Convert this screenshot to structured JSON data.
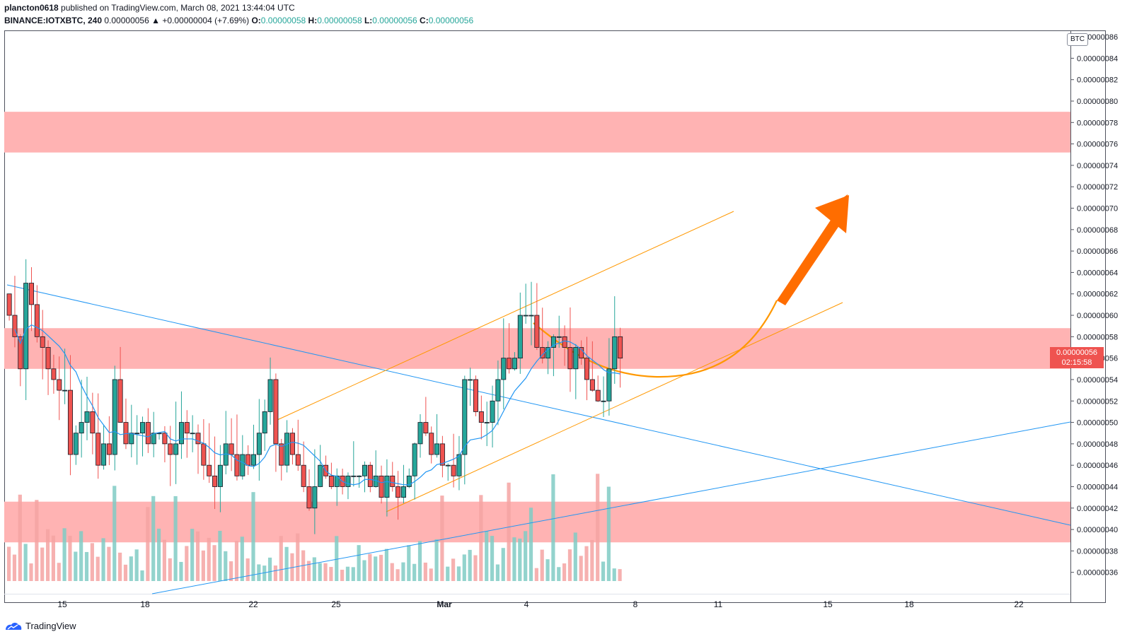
{
  "header": {
    "author": "plancton0618",
    "published_text": "published on TradingView.com, March 08, 2021 13:44:04 UTC",
    "symbol": "BINANCE:IOTXBTC, 240",
    "last": "0.00000056",
    "change": "▲ +0.00000004 (+7.69%)",
    "o_label": "O:",
    "o": "0.00000058",
    "h_label": "H:",
    "h": "0.00000058",
    "l_label": "L:",
    "l": "0.00000056",
    "c_label": "C:",
    "c": "0.00000056"
  },
  "currency_badge": "BTC",
  "price_tag": {
    "price": "0.00000056",
    "countdown": "02:15:58"
  },
  "footer": {
    "brand": "TradingView"
  },
  "colors": {
    "up": "#26a69a",
    "down": "#ef5350",
    "zone": "#ffb3b3",
    "sma": "#2196f3",
    "trend": "#2196f3",
    "channel": "#ff9800",
    "arrow": "#ff6d00"
  },
  "chart_data": {
    "type": "candlestick",
    "timeframe": "240",
    "y_unit": "BTC",
    "ylim": [
      3.4e-07,
      8.66e-07
    ],
    "y_ticks": [
      "0.00000036",
      "0.00000038",
      "0.00000040",
      "0.00000042",
      "0.00000044",
      "0.00000046",
      "0.00000048",
      "0.00000050",
      "0.00000052",
      "0.00000054",
      "0.00000056",
      "0.00000058",
      "0.00000060",
      "0.00000062",
      "0.00000064",
      "0.00000066",
      "0.00000068",
      "0.00000070",
      "0.00000072",
      "0.00000074",
      "0.00000076",
      "0.00000078",
      "0.00000080",
      "0.00000082",
      "0.00000084",
      "0.00000086"
    ],
    "x_ticks": [
      "15",
      "18",
      "22",
      "25",
      "Mar",
      "4",
      "8",
      "11",
      "15",
      "18",
      "22"
    ],
    "zones": [
      {
        "from": 7.52e-07,
        "to": 7.9e-07
      },
      {
        "from": 5.5e-07,
        "to": 5.88e-07
      },
      {
        "from": 3.88e-07,
        "to": 4.26e-07
      }
    ],
    "closes": [
      6e-07,
      5.8e-07,
      5.5e-07,
      6.3e-07,
      6.1e-07,
      5.8e-07,
      5.7e-07,
      5.5e-07,
      5.4e-07,
      5.3e-07,
      5.3e-07,
      4.7e-07,
      4.9e-07,
      5e-07,
      5.1e-07,
      4.9e-07,
      4.6e-07,
      4.8e-07,
      4.7e-07,
      5.4e-07,
      5e-07,
      4.8e-07,
      4.9e-07,
      4.9e-07,
      5e-07,
      4.8e-07,
      4.9e-07,
      4.9e-07,
      4.8e-07,
      4.7e-07,
      4.8e-07,
      5e-07,
      4.9e-07,
      4.9e-07,
      4.8e-07,
      4.6e-07,
      4.5e-07,
      4.4e-07,
      4.6e-07,
      4.8e-07,
      4.7e-07,
      4.5e-07,
      4.7e-07,
      4.6e-07,
      4.7e-07,
      4.9e-07,
      5.1e-07,
      5.4e-07,
      4.8e-07,
      4.6e-07,
      4.9e-07,
      4.7e-07,
      4.6e-07,
      4.4e-07,
      4.2e-07,
      4.4e-07,
      4.6e-07,
      4.5e-07,
      4.4e-07,
      4.5e-07,
      4.4e-07,
      4.5e-07,
      4.5e-07,
      4.5e-07,
      4.6e-07,
      4.4e-07,
      4.5e-07,
      4.3e-07,
      4.5e-07,
      4.4e-07,
      4.3e-07,
      4.4e-07,
      4.5e-07,
      4.8e-07,
      5e-07,
      4.9e-07,
      4.7e-07,
      4.8e-07,
      4.6e-07,
      4.6e-07,
      4.5e-07,
      4.7e-07,
      5.4e-07,
      5.4e-07,
      5.1e-07,
      5e-07,
      5e-07,
      5.2e-07,
      5.4e-07,
      5.6e-07,
      5.5e-07,
      5.6e-07,
      6e-07,
      6e-07,
      6e-07,
      5.7e-07,
      5.6e-07,
      5.7e-07,
      5.8e-07,
      5.8e-07,
      5.7e-07,
      5.5e-07,
      5.7e-07,
      5.6e-07,
      5.4e-07,
      5.3e-07,
      5.2e-07,
      5.2e-07,
      5.5e-07,
      5.8e-07,
      5.6e-07
    ]
  }
}
